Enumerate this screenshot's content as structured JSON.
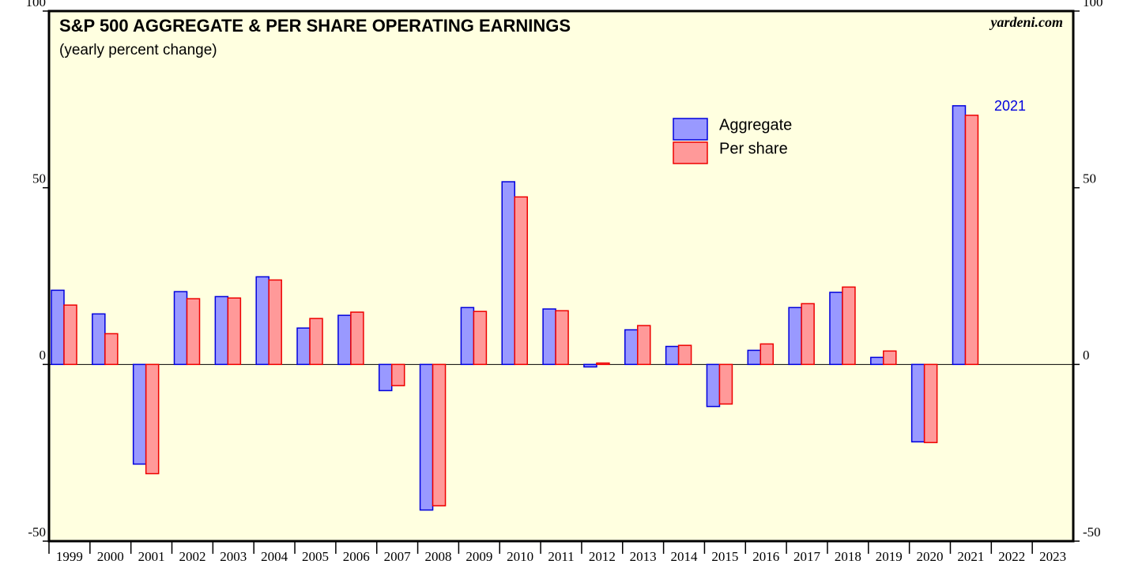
{
  "chart_data": {
    "type": "bar",
    "title": "S&P 500 AGGREGATE & PER SHARE OPERATING EARNINGS",
    "subtitle": "(yearly percent change)",
    "source": "yardeni.com",
    "annotation": "2021",
    "categories": [
      "1999",
      "2000",
      "2001",
      "2002",
      "2003",
      "2004",
      "2005",
      "2006",
      "2007",
      "2008",
      "2009",
      "2010",
      "2011",
      "2012",
      "2013",
      "2014",
      "2015",
      "2016",
      "2017",
      "2018",
      "2019",
      "2020",
      "2021",
      "2022",
      "2023"
    ],
    "series": [
      {
        "name": "Aggregate",
        "color": "#9999ff",
        "edge": "#0000dd",
        "values": [
          21.0,
          14.3,
          -28.2,
          20.6,
          19.2,
          24.8,
          10.3,
          13.9,
          -7.4,
          -41.2,
          16.1,
          51.7,
          15.7,
          -0.7,
          9.8,
          5.1,
          -11.9,
          4.0,
          16.1,
          20.4,
          2.0,
          -21.9,
          73.2,
          null,
          null
        ]
      },
      {
        "name": "Per share",
        "color": "#ff9999",
        "edge": "#ee0000",
        "values": [
          16.8,
          8.7,
          -30.9,
          18.6,
          18.8,
          23.9,
          13.0,
          14.8,
          -6.0,
          -40.0,
          15.0,
          47.4,
          15.2,
          0.4,
          11.0,
          5.4,
          -11.2,
          5.8,
          17.2,
          21.9,
          3.8,
          -22.1,
          70.5,
          null,
          null
        ]
      }
    ],
    "ylim": [
      -50,
      100
    ],
    "yticks": [
      -50,
      0,
      50,
      100
    ]
  }
}
